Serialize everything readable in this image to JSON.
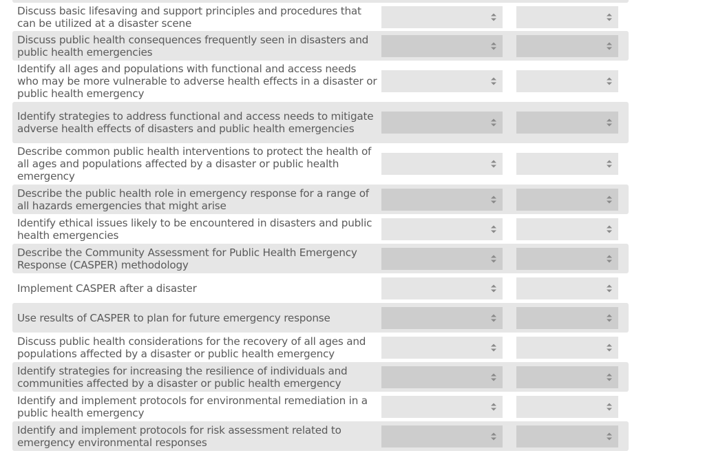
{
  "rows": [
    {
      "label": "Discuss basic lifesaving and support principles and procedures that can be utilized at a disaster scene"
    },
    {
      "label": "Discuss public health consequences frequently seen in disasters and public health emergencies"
    },
    {
      "label": "Identify all ages and populations with functional and access needs who may be more vulnerable to adverse health effects in a disaster or public health emergency"
    },
    {
      "label": "Identify strategies to address functional and access needs to mitigate adverse health effects of disasters and public health emergencies"
    },
    {
      "label": "Describe common public health interventions to protect the health of all ages and populations affected by a disaster or public health emergency"
    },
    {
      "label": "Describe the public health role in emergency response for a range of all hazards emergencies that might arise"
    },
    {
      "label": "Identify ethical issues likely to be encountered in disasters and public health emergencies"
    },
    {
      "label": "Describe the Community Assessment for Public Health Emergency Response (CASPER) methodology"
    },
    {
      "label": "Implement CASPER after a disaster"
    },
    {
      "label": "Use results of CASPER to plan for future emergency response"
    },
    {
      "label": "Discuss public health considerations for the recovery of all ages and populations affected by a disaster or public health emergency"
    },
    {
      "label": "Identify strategies for increasing the resilience of individuals and communities affected by a disaster or public health emergency"
    },
    {
      "label": "Identify and implement protocols for environmental remediation in a public health emergency"
    },
    {
      "label": "Identify and implement protocols for risk assessment related to emergency environmental responses"
    }
  ]
}
